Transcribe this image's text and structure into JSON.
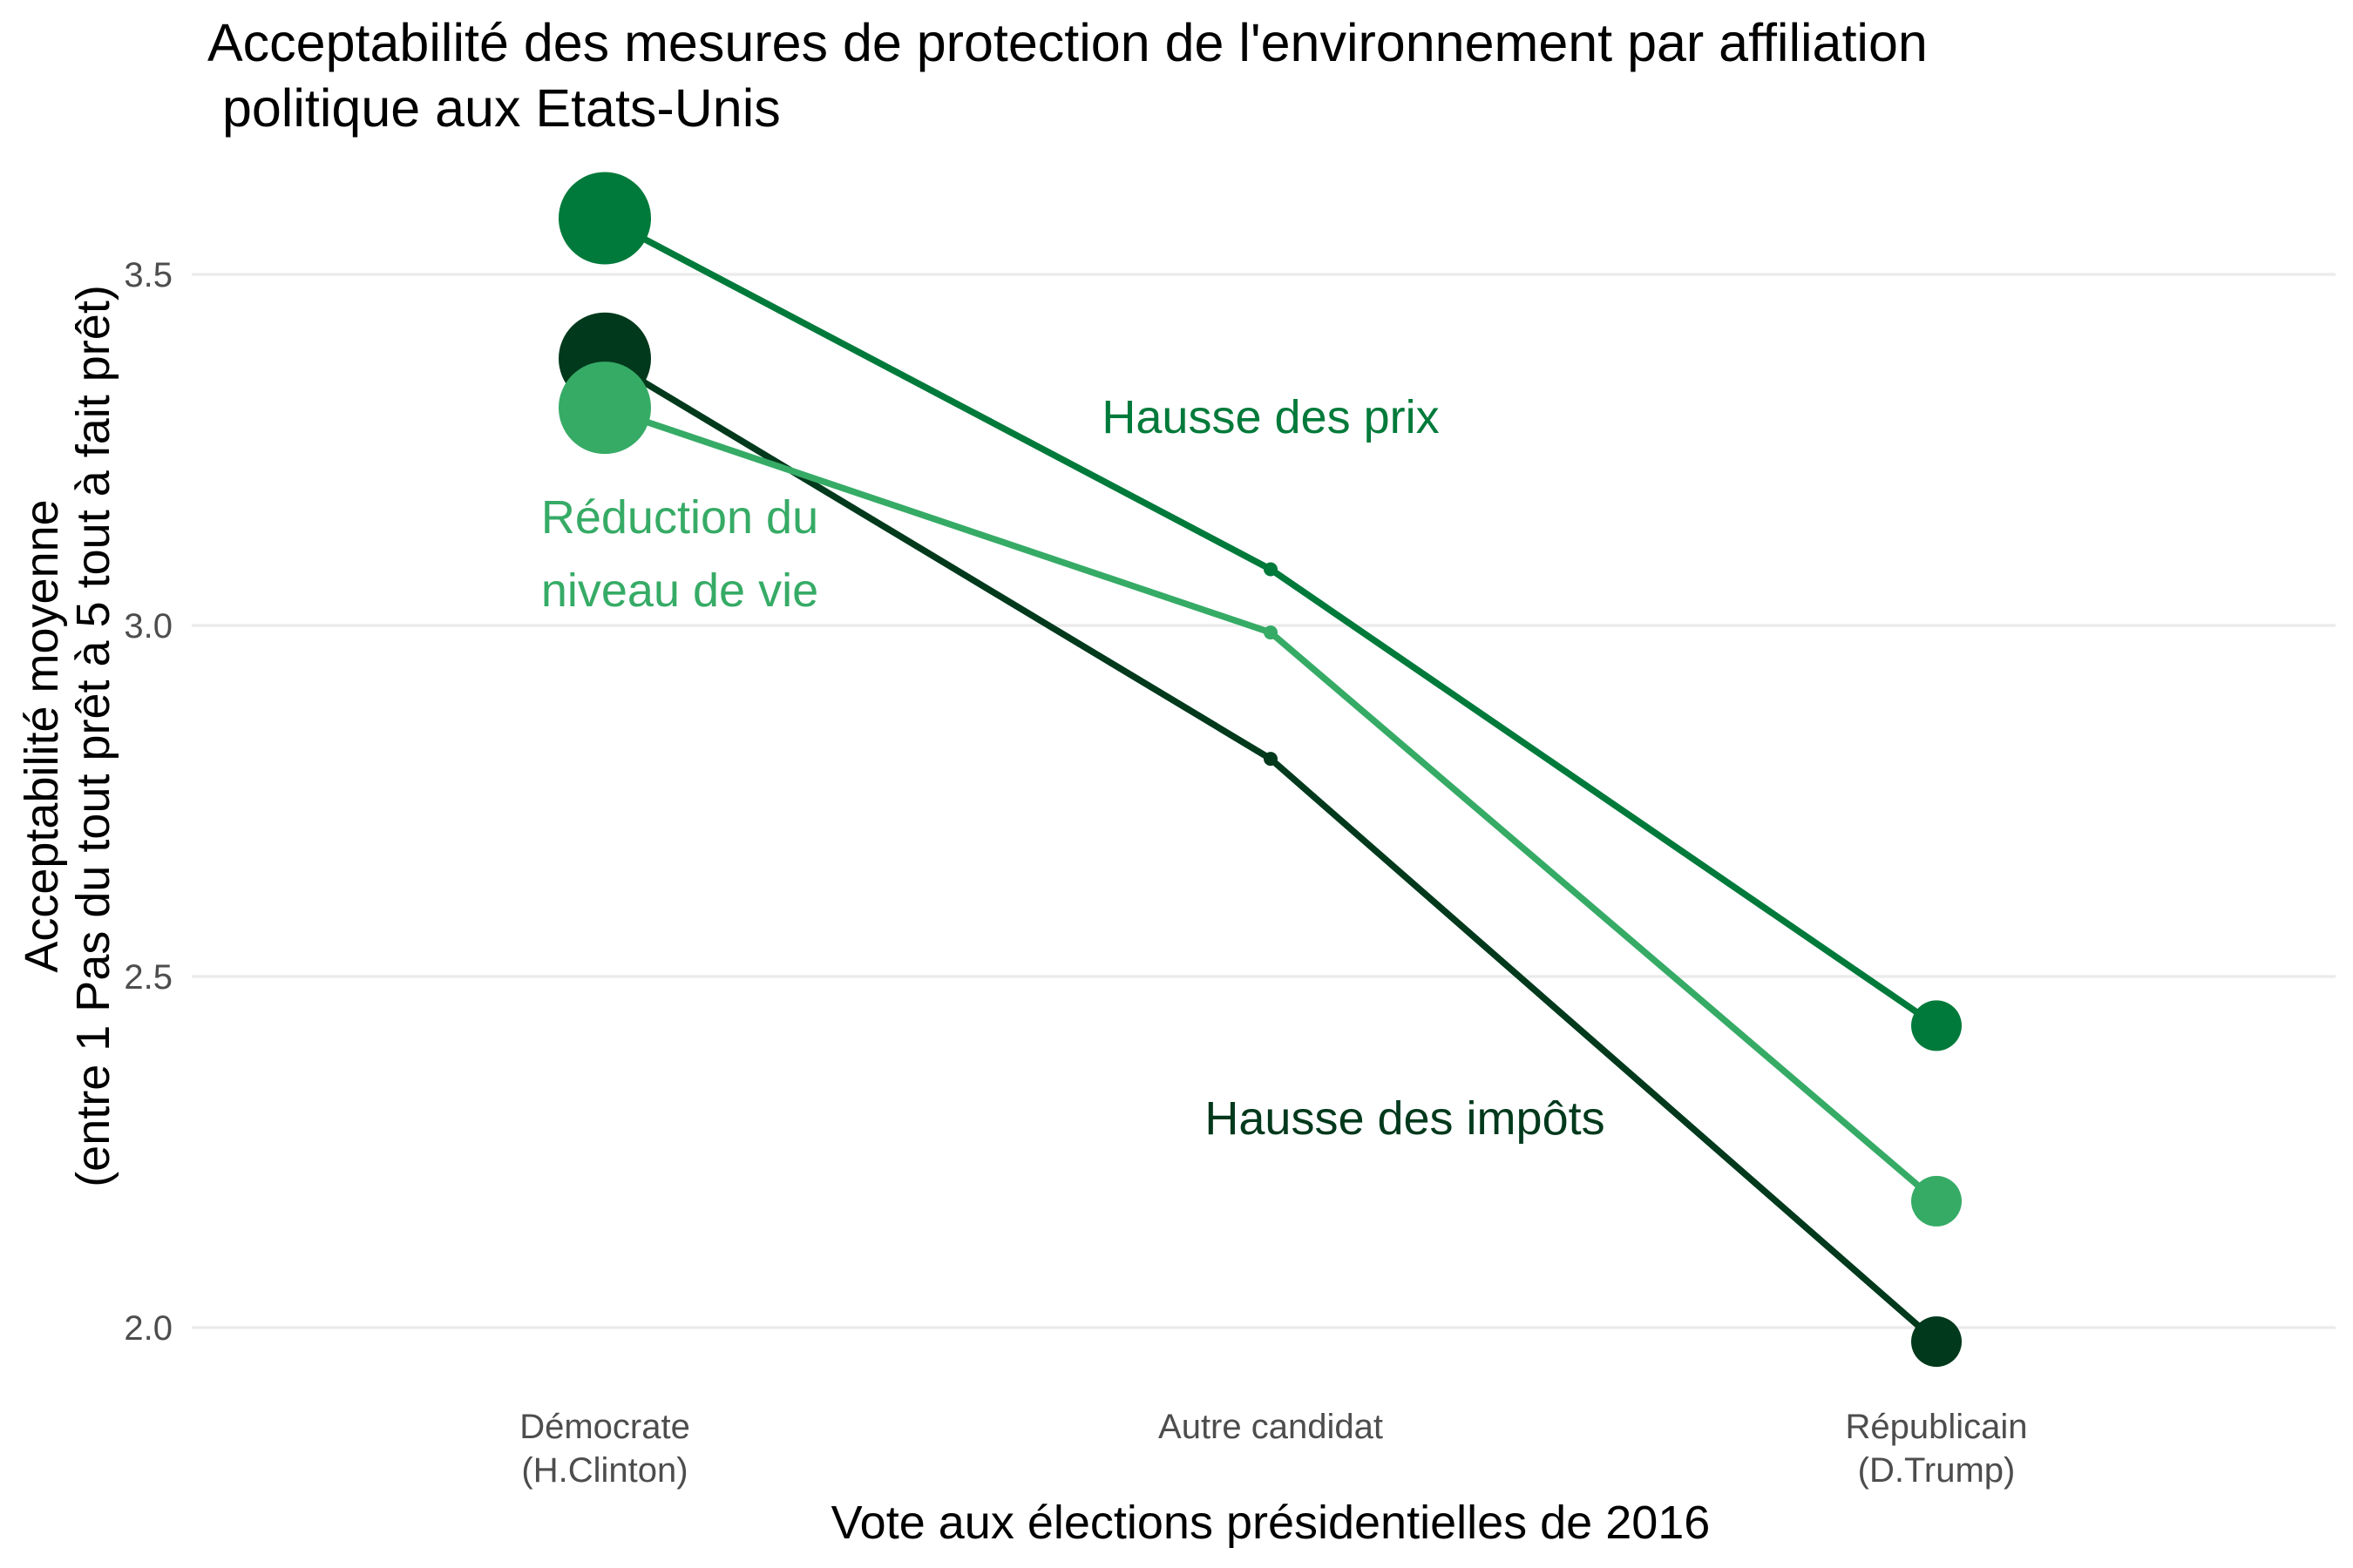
{
  "chart_data": {
    "type": "line",
    "title_lines": [
      "Acceptabilité des mesures de protection de l'environnement par affiliation",
      " politique aux Etats-Unis"
    ],
    "xlabel": "Vote aux élections présidentielles de 2016",
    "ylabel_lines": [
      "Acceptabilité moyenne",
      "(entre 1 Pas du tout prêt à 5 tout à fait prêt)"
    ],
    "categories": [
      {
        "lines": [
          "Démocrate",
          " (H.Clinton)"
        ]
      },
      {
        "lines": [
          "Autre candidat"
        ]
      },
      {
        "lines": [
          "Républicain",
          " (D.Trump)"
        ]
      }
    ],
    "y_ticks": [
      "2.0",
      "2.5",
      "3.0",
      "3.5"
    ],
    "y_tick_values": [
      2.0,
      2.5,
      3.0,
      3.5
    ],
    "ylim": [
      1.95,
      3.63
    ],
    "grid": true,
    "legend": "none (direct labels)",
    "series": [
      {
        "name": "Hausse des prix",
        "color": "#007a3a",
        "values": [
          3.58,
          3.08,
          2.43
        ],
        "label_lines": [
          "Hausse des prix"
        ]
      },
      {
        "name": "Hausse des impôts",
        "color": "#00391c",
        "values": [
          3.38,
          2.81,
          1.98
        ],
        "label_lines": [
          "Hausse des impôts"
        ]
      },
      {
        "name": "Réduction du niveau de vie",
        "color": "#36ab66",
        "values": [
          3.31,
          2.99,
          2.18
        ],
        "label_lines": [
          "Réduction du",
          " niveau de vie"
        ]
      }
    ]
  }
}
